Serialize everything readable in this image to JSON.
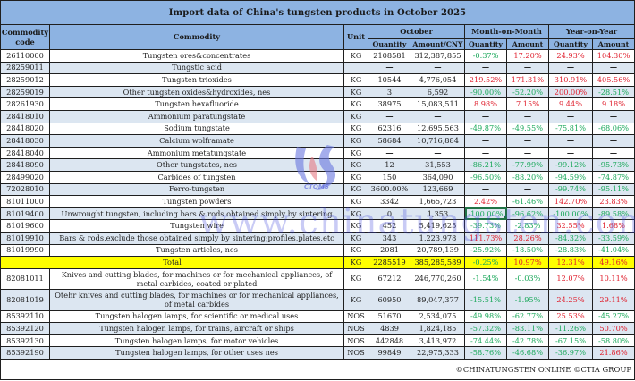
{
  "title": "Import data of China's tungsten products in October 2025",
  "headers": {
    "code": "Commodity code",
    "commodity": "Commodity",
    "unit": "Unit",
    "october": "October",
    "mom": "Month-on-Month",
    "yoy": "Year-on-Year",
    "quantity": "Quantity",
    "amount_cny": "Amount/CNY",
    "amount": "Amount"
  },
  "colors": {
    "header_bg": "#8db3e2",
    "alt_row_bg": "#dce6f1",
    "total_bg": "#ffff00",
    "negative": "#1aa85a",
    "positive": "#e0202e"
  },
  "rows": [
    {
      "code": "26110000",
      "commodity": "Tungsten ores&concentrates",
      "unit": "KG",
      "qty": "2108581",
      "amount": "312,387,855",
      "mom_qty": "-0.37%",
      "mom_amt": "17.20%",
      "yoy_qty": "24.93%",
      "yoy_amt": "104.30%"
    },
    {
      "code": "28259011",
      "commodity": "Tungstic acid",
      "unit": "",
      "qty": "—",
      "amount": "—",
      "mom_qty": "—",
      "mom_amt": "—",
      "yoy_qty": "—",
      "yoy_amt": "—"
    },
    {
      "code": "28259012",
      "commodity": "Tungsten trioxides",
      "unit": "KG",
      "qty": "10544",
      "amount": "4,776,054",
      "mom_qty": "219.52%",
      "mom_amt": "171.31%",
      "yoy_qty": "310.91%",
      "yoy_amt": "405.56%"
    },
    {
      "code": "28259019",
      "commodity": "Other tungsten oxides&hydroxides, nes",
      "unit": "KG",
      "qty": "3",
      "amount": "6,592",
      "mom_qty": "-90.00%",
      "mom_amt": "-52.20%",
      "yoy_qty": "200.00%",
      "yoy_amt": "-28.51%"
    },
    {
      "code": "28261930",
      "commodity": "Tungsten hexafluoride",
      "unit": "KG",
      "qty": "38975",
      "amount": "15,083,511",
      "mom_qty": "8.98%",
      "mom_amt": "7.15%",
      "yoy_qty": "9.44%",
      "yoy_amt": "9.18%"
    },
    {
      "code": "28418010",
      "commodity": "Ammonium paratungstate",
      "unit": "KG",
      "qty": "—",
      "amount": "—",
      "mom_qty": "—",
      "mom_amt": "—",
      "yoy_qty": "—",
      "yoy_amt": "—"
    },
    {
      "code": "28418020",
      "commodity": "Sodium tungstate",
      "unit": "KG",
      "qty": "62316",
      "amount": "12,695,563",
      "mom_qty": "-49.87%",
      "mom_amt": "-49.55%",
      "yoy_qty": "-75.81%",
      "yoy_amt": "-68.06%"
    },
    {
      "code": "28418030",
      "commodity": "Calcium wolframate",
      "unit": "KG",
      "qty": "58684",
      "amount": "10,716,884",
      "mom_qty": "—",
      "mom_amt": "—",
      "yoy_qty": "—",
      "yoy_amt": "—"
    },
    {
      "code": "28418040",
      "commodity": "Ammonium metatungstate",
      "unit": "KG",
      "qty": "—",
      "amount": "—",
      "mom_qty": "—",
      "mom_amt": "—",
      "yoy_qty": "—",
      "yoy_amt": "—"
    },
    {
      "code": "28418090",
      "commodity": "Other tungstates, nes",
      "unit": "KG",
      "qty": "12",
      "amount": "31,553",
      "mom_qty": "-86.21%",
      "mom_amt": "-77.99%",
      "yoy_qty": "-99.12%",
      "yoy_amt": "-95.73%"
    },
    {
      "code": "28499020",
      "commodity": "Carbides of tungsten",
      "unit": "KG",
      "qty": "150",
      "amount": "364,090",
      "mom_qty": "-96.50%",
      "mom_amt": "-88.20%",
      "yoy_qty": "-94.59%",
      "yoy_amt": "-74.87%"
    },
    {
      "code": "72028010",
      "commodity": "Ferro-tungsten",
      "unit": "KG",
      "qty": "3600.00%",
      "amount": "123,669",
      "mom_qty": "—",
      "mom_amt": "—",
      "yoy_qty": "-99.74%",
      "yoy_amt": "-95.11%"
    },
    {
      "code": "81011000",
      "commodity": "Tungsten powders",
      "unit": "KG",
      "qty": "3342",
      "amount": "1,665,723",
      "mom_qty": "2.42%",
      "mom_amt": "-61.46%",
      "yoy_qty": "142.70%",
      "yoy_amt": "23.83%"
    },
    {
      "code": "81019400",
      "commodity": "Unwrought tungsten, including bars & rods obtained simply by sintering",
      "unit": "KG",
      "qty": "0",
      "amount": "1,353",
      "mom_qty": "-100.00%",
      "mom_amt": "-96.62%",
      "yoy_qty": "-100.00%",
      "yoy_amt": "-89.58%"
    },
    {
      "code": "81019600",
      "commodity": "Tungsten wire",
      "unit": "KG",
      "qty": "452",
      "amount": "5,419,625",
      "mom_qty": "-39.73%",
      "mom_amt": "-2.83%",
      "yoy_qty": "32.55%",
      "yoy_amt": "1.68%"
    },
    {
      "code": "81019910",
      "commodity": "Bars & rods,exclude those obtained simply by sintering;profiles,plates,etc",
      "unit": "KG",
      "qty": "343",
      "amount": "1,223,978",
      "mom_qty": "111.73%",
      "mom_amt": "28.26%",
      "yoy_qty": "-84.32%",
      "yoy_amt": "-33.59%"
    },
    {
      "code": "81019990",
      "commodity": "Tungsten articles, nes",
      "unit": "KG",
      "qty": "2081",
      "amount": "20,789,139",
      "mom_qty": "-25.92%",
      "mom_amt": "-18.50%",
      "yoy_qty": "-28.83%",
      "yoy_amt": "-41.04%"
    }
  ],
  "total": {
    "label": "Total",
    "unit": "KG",
    "qty": "2285519",
    "amount": "385,285,589",
    "mom_qty": "-0.25%",
    "mom_amt": "10.97%",
    "yoy_qty": "12.31%",
    "yoy_amt": "49.16%"
  },
  "rows2": [
    {
      "code": "82081011",
      "commodity": "Knives and cutting blades, for machines or for mechanical appliances, of metal carbides, coated or plated",
      "unit": "KG",
      "qty": "67212",
      "amount": "246,770,260",
      "mom_qty": "-1.54%",
      "mom_amt": "-0.03%",
      "yoy_qty": "12.07%",
      "yoy_amt": "10.11%"
    },
    {
      "code": "82081019",
      "commodity": "Otehr knives and cutting blades, for machines or for mechanical appliances, of metal carbides",
      "unit": "KG",
      "qty": "60950",
      "amount": "89,047,377",
      "mom_qty": "-15.51%",
      "mom_amt": "-1.95%",
      "yoy_qty": "24.25%",
      "yoy_amt": "29.11%"
    },
    {
      "code": "85392110",
      "commodity": "Tungsten halogen lamps, for scientific or medical uses",
      "unit": "NOS",
      "qty": "51670",
      "amount": "2,534,075",
      "mom_qty": "-49.98%",
      "mom_amt": "-62.77%",
      "yoy_qty": "25.53%",
      "yoy_amt": "-45.27%"
    },
    {
      "code": "85392120",
      "commodity": "Tungsten halogen lamps, for trains, aircraft or ships",
      "unit": "NOS",
      "qty": "4839",
      "amount": "1,824,185",
      "mom_qty": "-57.32%",
      "mom_amt": "-83.11%",
      "yoy_qty": "-11.26%",
      "yoy_amt": "50.70%"
    },
    {
      "code": "85392130",
      "commodity": "Tungsten halogen lamps, for motor vehicles",
      "unit": "NOS",
      "qty": "442848",
      "amount": "3,413,972",
      "mom_qty": "-74.44%",
      "mom_amt": "-42.78%",
      "yoy_qty": "-67.15%",
      "yoy_amt": "-58.80%"
    },
    {
      "code": "85392190",
      "commodity": "Tungsten halogen lamps, for other uses nes",
      "unit": "NOS",
      "qty": "99849",
      "amount": "22,975,333",
      "mom_qty": "-58.76%",
      "mom_amt": "-46.68%",
      "yoy_qty": "-36.97%",
      "yoy_amt": "21.86%"
    }
  ],
  "footer": "©CHINATUNGSTEN ONLINE  ©CTIA GROUP",
  "watermark": {
    "text": "www.chinatungsten.com",
    "logo_label": "CTOMS"
  }
}
